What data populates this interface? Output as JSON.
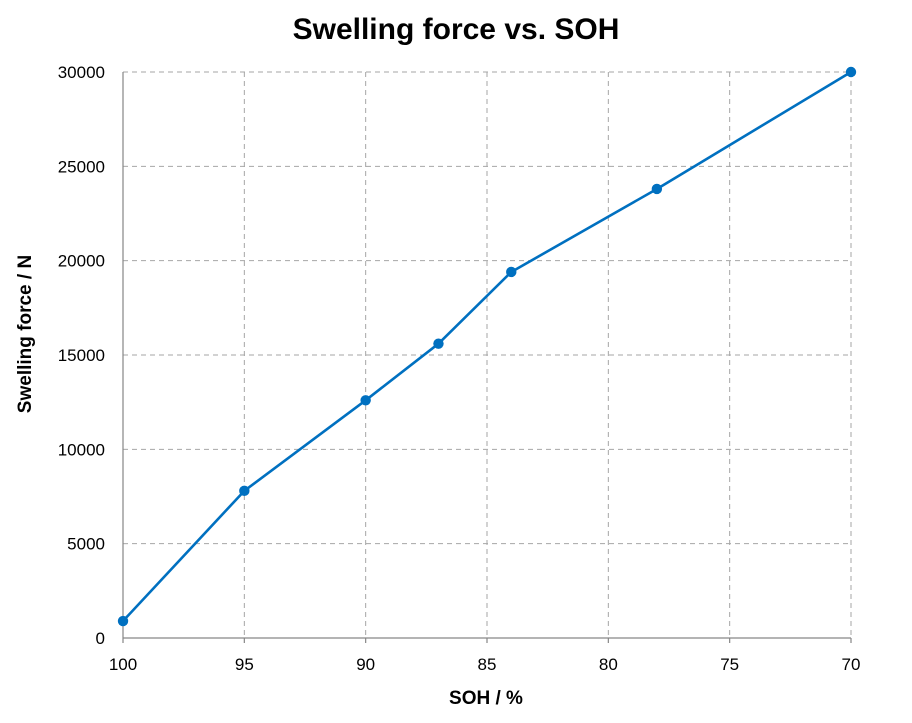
{
  "chart_data": {
    "type": "line",
    "title": "Swelling force vs. SOH",
    "xlabel": "SOH / %",
    "ylabel": "Swelling force / N",
    "xlim": [
      100,
      70
    ],
    "ylim": [
      0,
      30000
    ],
    "x_ticks": [
      100,
      95,
      90,
      85,
      80,
      75,
      70
    ],
    "y_ticks": [
      0,
      5000,
      10000,
      15000,
      20000,
      25000,
      30000
    ],
    "grid": true,
    "series": [
      {
        "name": "Swelling force",
        "color": "#0070c0",
        "x": [
          100,
          95,
          90,
          87,
          84,
          78,
          70
        ],
        "y": [
          900,
          7800,
          12600,
          15600,
          19400,
          23800,
          30000
        ]
      }
    ]
  }
}
